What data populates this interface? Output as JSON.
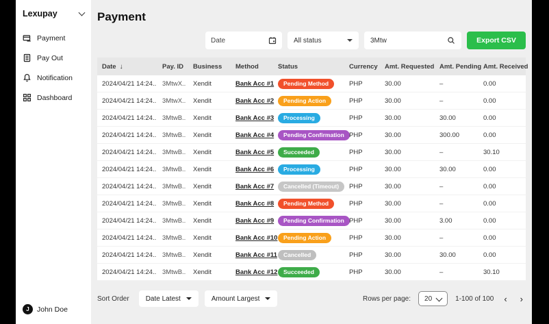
{
  "sidebar": {
    "brand": "Lexupay",
    "items": [
      {
        "label": "Payment",
        "icon": "card-icon"
      },
      {
        "label": "Pay Out",
        "icon": "document-icon"
      },
      {
        "label": "Notification",
        "icon": "bell-icon"
      },
      {
        "label": "Dashboard",
        "icon": "grid-icon"
      }
    ],
    "user": {
      "initial": "J",
      "name": "John Doe"
    }
  },
  "header": {
    "title": "Payment"
  },
  "filters": {
    "date_placeholder": "Date",
    "status_value": "All status",
    "search_value": "3Mtw",
    "export_label": "Export CSV"
  },
  "table": {
    "columns": [
      "Date",
      "Pay. ID",
      "Business",
      "Method",
      "Status",
      "Currency",
      "Amt. Requested",
      "Amt. Pending",
      "Amt. Received"
    ],
    "sort_column": "Date",
    "sort_direction": "desc",
    "rows": [
      {
        "date": "2024/04/21 14:24..",
        "pay_id": "3MtwX..",
        "business": "Xendit",
        "method": "Bank Acc #1",
        "status": "Pending Method",
        "currency": "PHP",
        "requested": "30.00",
        "pending": "–",
        "received": "0.00"
      },
      {
        "date": "2024/04/21 14:24..",
        "pay_id": "3MtwX..",
        "business": "Xendit",
        "method": "Bank Acc #2",
        "status": "Pending Action",
        "currency": "PHP",
        "requested": "30.00",
        "pending": "–",
        "received": "0.00"
      },
      {
        "date": "2024/04/21 14:24..",
        "pay_id": "3MtwB..",
        "business": "Xendit",
        "method": "Bank Acc #3",
        "status": "Processing",
        "currency": "PHP",
        "requested": "30.00",
        "pending": "30.00",
        "received": "0.00"
      },
      {
        "date": "2024/04/21 14:24..",
        "pay_id": "3MtwB..",
        "business": "Xendit",
        "method": "Bank Acc #4",
        "status": "Pending Confirmation",
        "currency": "PHP",
        "requested": "30.00",
        "pending": "300.00",
        "received": "0.00"
      },
      {
        "date": "2024/04/21 14:24..",
        "pay_id": "3MtwB..",
        "business": "Xendit",
        "method": "Bank Acc #5",
        "status": "Succeeded",
        "currency": "PHP",
        "requested": "30.00",
        "pending": "–",
        "received": "30.10"
      },
      {
        "date": "2024/04/21 14:24..",
        "pay_id": "3MtwB..",
        "business": "Xendit",
        "method": "Bank Acc #6",
        "status": "Processing",
        "currency": "PHP",
        "requested": "30.00",
        "pending": "30.00",
        "received": "0.00"
      },
      {
        "date": "2024/04/21 14:24..",
        "pay_id": "3MtwB..",
        "business": "Xendit",
        "method": "Bank Acc #7",
        "status": "Cancelled (Timeout)",
        "currency": "PHP",
        "requested": "30.00",
        "pending": "–",
        "received": "0.00"
      },
      {
        "date": "2024/04/21 14:24..",
        "pay_id": "3MtwB..",
        "business": "Xendit",
        "method": "Bank Acc #8",
        "status": "Pending Method",
        "currency": "PHP",
        "requested": "30.00",
        "pending": "–",
        "received": "0.00"
      },
      {
        "date": "2024/04/21 14:24..",
        "pay_id": "3MtwB..",
        "business": "Xendit",
        "method": "Bank Acc #9",
        "status": "Pending Confirmation",
        "currency": "PHP",
        "requested": "30.00",
        "pending": "3.00",
        "received": "0.00"
      },
      {
        "date": "2024/04/21 14:24..",
        "pay_id": "3MtwB..",
        "business": "Xendit",
        "method": "Bank Acc #10",
        "status": "Pending Action",
        "currency": "PHP",
        "requested": "30.00",
        "pending": "–",
        "received": "0.00"
      },
      {
        "date": "2024/04/21 14:24..",
        "pay_id": "3MtwB..",
        "business": "Xendit",
        "method": "Bank Acc #11",
        "status": "Cancelled",
        "currency": "PHP",
        "requested": "30.00",
        "pending": "30.00",
        "received": "0.00"
      },
      {
        "date": "2024/04/21 14:24..",
        "pay_id": "3MtwB..",
        "business": "Xendit",
        "method": "Bank Acc #12",
        "status": "Succeeded",
        "currency": "PHP",
        "requested": "30.00",
        "pending": "–",
        "received": "30.10"
      }
    ]
  },
  "footer": {
    "sort_order_label": "Sort Order",
    "date_sort_value": "Date Latest",
    "amount_sort_value": "Amount Largest",
    "rows_per_page_label": "Rows per page:",
    "rows_per_page_value": "20",
    "range_text": "1-100 of 100"
  },
  "colors": {
    "accent_green": "#2bbe4b",
    "status": {
      "Pending Method": "#f1502b",
      "Pending Action": "#f9a01b",
      "Processing": "#29abe2",
      "Pending Confirmation": "#a855c4",
      "Succeeded": "#3eac49",
      "Cancelled": "#bfbfbf",
      "Cancelled (Timeout)": "#c6c6c6"
    }
  }
}
